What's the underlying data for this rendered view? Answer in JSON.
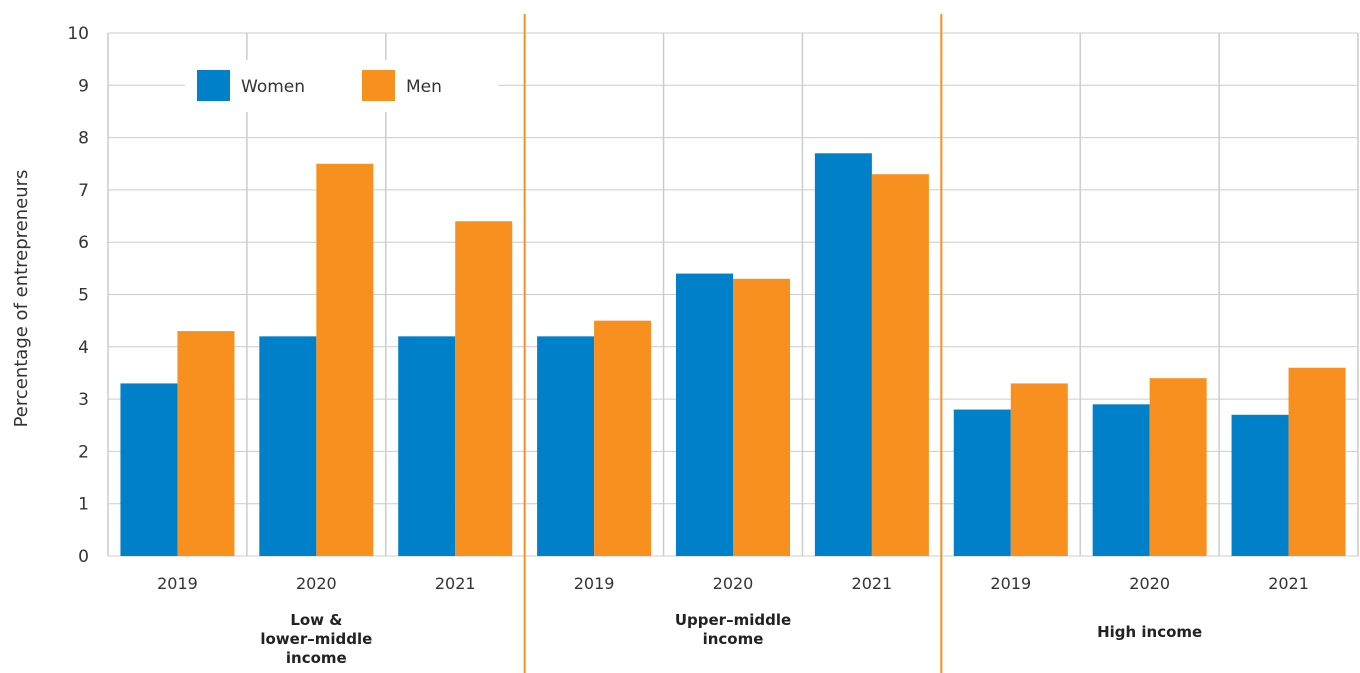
{
  "chart_data": {
    "type": "bar",
    "ylabel": "Percentage of entrepreneurs",
    "xlabel": "",
    "ylim": [
      0,
      10
    ],
    "yticks": [
      "0",
      "1",
      "2",
      "3",
      "4",
      "5",
      "6",
      "7",
      "8",
      "9",
      "10"
    ],
    "grid": true,
    "legend_position": "top-left",
    "groups": [
      {
        "label_lines": [
          "Low &",
          "lower–middle",
          "income"
        ],
        "categories": [
          "2019",
          "2020",
          "2021"
        ]
      },
      {
        "label_lines": [
          "Upper–middle",
          "income"
        ],
        "categories": [
          "2019",
          "2020",
          "2021"
        ]
      },
      {
        "label_lines": [
          "High income"
        ],
        "categories": [
          "2019",
          "2020",
          "2021"
        ]
      }
    ],
    "series": [
      {
        "name": "Women",
        "color": "#0080c8",
        "values": [
          3.3,
          4.2,
          4.2,
          4.2,
          5.4,
          7.7,
          2.8,
          2.9,
          2.7
        ]
      },
      {
        "name": "Men",
        "color": "#f7901e",
        "values": [
          4.3,
          7.5,
          6.4,
          4.5,
          5.3,
          7.3,
          3.3,
          3.4,
          3.6
        ]
      }
    ],
    "separator_color": "#f7901e",
    "grid_color": "#cccccc"
  }
}
